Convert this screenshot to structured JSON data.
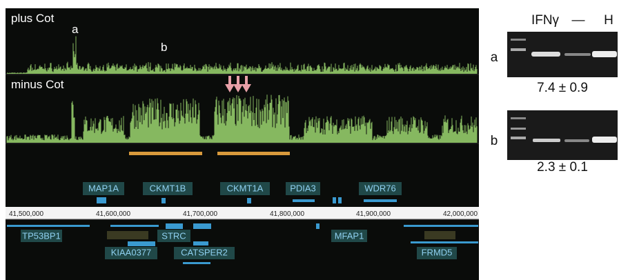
{
  "tracks": {
    "top": {
      "label": "plus Cot",
      "peaks": [
        "a",
        "b"
      ]
    },
    "bottom": {
      "label": "minus Cot"
    }
  },
  "genes_upper": [
    "MAP1A",
    "CKMT1B",
    "CKMT1A",
    "PDIA3",
    "WDR76"
  ],
  "ruler": [
    "41,500,000",
    "41,600,000",
    "41,700,000",
    "41,800,000",
    "41,900,000",
    "42,000,000"
  ],
  "genes_lower": [
    "TP53BP1",
    "STRC",
    "MFAP1",
    "KIAA0377",
    "CATSPER2",
    "FRMD5"
  ],
  "gel": {
    "lanes": [
      "IFNγ",
      "—",
      "H"
    ],
    "rows": [
      {
        "label": "a",
        "value": "7.4 ± 0.9"
      },
      {
        "label": "b",
        "value": "2.3 ± 0.1"
      }
    ]
  }
}
